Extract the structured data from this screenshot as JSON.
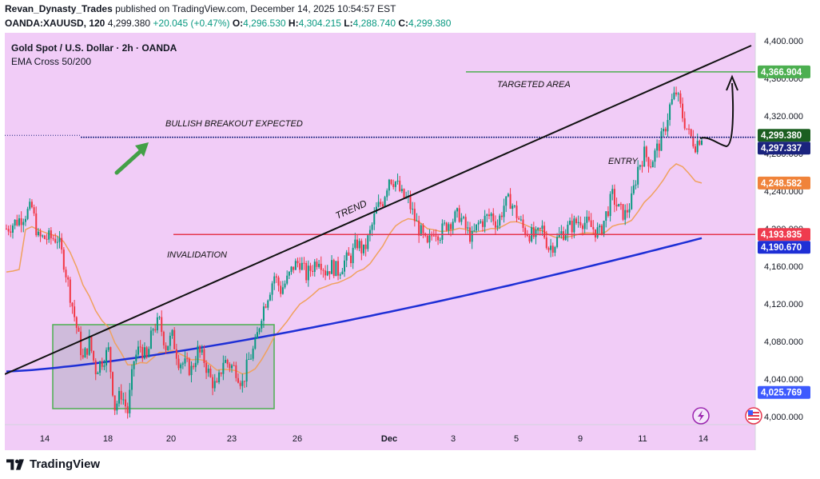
{
  "header": {
    "author": "Revan_Dynasty_Trades",
    "published_text": " published on TradingView.com, December 14, 2025 10:54:57 EST",
    "symbol": "OANDA:XAUUSD, 120",
    "last": " 4,299.380 ",
    "change": "+20.045 (+0.47%)",
    "o_label": " O:",
    "o_val": "4,296.530",
    "h_label": " H:",
    "h_val": "4,304.215",
    "l_label": " L:",
    "l_val": "4,288.740",
    "c_label": " C:",
    "c_val": "4,299.380"
  },
  "legend": {
    "title": "Gold Spot / U.S. Dollar · 2h · OANDA",
    "indicator": "EMA Cross 50/200"
  },
  "colors": {
    "background": "#f1ccf7",
    "up": "#089981",
    "down": "#f23645",
    "ema_fast": "#f0a15e",
    "ema_slow": "#1e2fd6",
    "target": "#4caf50",
    "invalidation": "#e91e63",
    "current": "#1a237e"
  },
  "annotations": {
    "targeted_area": "TARGETED AREA",
    "bullish": "BULLISH BREAKOUT EXPECTED",
    "entry": "ENTRY",
    "trend": "TREND",
    "invalidation": "INVALIDATION"
  },
  "price_labels": {
    "target": "4,366.904",
    "last": "4,299.380",
    "current": "4,297.337",
    "ema_fast": "4,248.582",
    "invalidation": "4,193.835",
    "ema_slow": "4,190.670",
    "low": "4,025.769"
  },
  "footer": {
    "brand": "TradingView"
  },
  "chart_data": {
    "type": "candlestick",
    "symbol": "XAUUSD",
    "timeframe": "2h",
    "ylim": [
      3990,
      4410
    ],
    "y_ticks": [
      "4,400.000",
      "4,360.000",
      "4,320.000",
      "4,280.000",
      "4,240.000",
      "4,200.000",
      "4,160.000",
      "4,120.000",
      "4,080.000",
      "4,040.000",
      "4,000.000"
    ],
    "y_tick_values": [
      4400,
      4360,
      4320,
      4280,
      4240,
      4200,
      4160,
      4120,
      4080,
      4040,
      4000
    ],
    "x_ticks": [
      "14",
      "18",
      "20",
      "23",
      "26",
      "Dec",
      "3",
      "5",
      "9",
      "11",
      "14"
    ],
    "levels": {
      "target": 4366.904,
      "last": 4299.38,
      "current": 4297.337,
      "invalidation": 4193.835,
      "ema_fast_last": 4248.582,
      "ema_slow_last": 4190.67
    },
    "close_path": [
      [
        0,
        4200
      ],
      [
        2,
        4210
      ],
      [
        4,
        4222
      ],
      [
        5,
        4190
      ],
      [
        8,
        4190
      ],
      [
        9,
        4165
      ],
      [
        10,
        4130
      ],
      [
        11,
        4095
      ],
      [
        12,
        4060
      ],
      [
        13,
        4080
      ],
      [
        14,
        4050
      ],
      [
        16,
        4070
      ],
      [
        17,
        4010
      ],
      [
        18,
        4025
      ],
      [
        19,
        4005
      ],
      [
        20,
        4060
      ],
      [
        21,
        4075
      ],
      [
        22,
        4060
      ],
      [
        23,
        4095
      ],
      [
        24,
        4100
      ],
      [
        25,
        4075
      ],
      [
        26,
        4085
      ],
      [
        27,
        4060
      ],
      [
        29,
        4050
      ],
      [
        30,
        4070
      ],
      [
        31,
        4060
      ],
      [
        32,
        4040
      ],
      [
        33,
        4030
      ],
      [
        34,
        4060
      ],
      [
        36,
        4050
      ],
      [
        37,
        4035
      ],
      [
        38,
        4060
      ],
      [
        39,
        4075
      ],
      [
        40,
        4110
      ],
      [
        41,
        4130
      ],
      [
        42,
        4150
      ],
      [
        43,
        4135
      ],
      [
        44,
        4145
      ],
      [
        45,
        4160
      ],
      [
        46,
        4165
      ],
      [
        47,
        4150
      ],
      [
        48,
        4160
      ],
      [
        49,
        4170
      ],
      [
        50,
        4155
      ],
      [
        51,
        4160
      ],
      [
        52,
        4155
      ],
      [
        53,
        4165
      ],
      [
        54,
        4170
      ],
      [
        55,
        4185
      ],
      [
        56,
        4175
      ],
      [
        57,
        4195
      ],
      [
        58,
        4220
      ],
      [
        59,
        4230
      ],
      [
        60,
        4255
      ],
      [
        61,
        4250
      ],
      [
        62,
        4235
      ],
      [
        63,
        4230
      ],
      [
        64,
        4210
      ],
      [
        65,
        4195
      ],
      [
        66,
        4180
      ],
      [
        67,
        4200
      ],
      [
        68,
        4195
      ],
      [
        69,
        4205
      ],
      [
        70,
        4210
      ],
      [
        71,
        4215
      ],
      [
        72,
        4200
      ],
      [
        73,
        4190
      ],
      [
        74,
        4205
      ],
      [
        75,
        4210
      ],
      [
        76,
        4215
      ],
      [
        77,
        4205
      ],
      [
        78,
        4225
      ],
      [
        79,
        4230
      ],
      [
        80,
        4215
      ],
      [
        81,
        4200
      ],
      [
        82,
        4195
      ],
      [
        83,
        4190
      ],
      [
        84,
        4200
      ],
      [
        85,
        4180
      ],
      [
        86,
        4185
      ],
      [
        87,
        4195
      ],
      [
        88,
        4200
      ],
      [
        89,
        4205
      ],
      [
        90,
        4210
      ],
      [
        91,
        4205
      ],
      [
        92,
        4200
      ],
      [
        93,
        4195
      ],
      [
        94,
        4215
      ],
      [
        95,
        4235
      ],
      [
        96,
        4220
      ],
      [
        97,
        4215
      ],
      [
        98,
        4230
      ],
      [
        99,
        4265
      ],
      [
        100,
        4280
      ],
      [
        101,
        4270
      ],
      [
        102,
        4285
      ],
      [
        103,
        4300
      ],
      [
        104,
        4330
      ],
      [
        105,
        4345
      ],
      [
        106,
        4320
      ],
      [
        107,
        4300
      ],
      [
        108,
        4290
      ],
      [
        109,
        4299.38
      ]
    ]
  }
}
